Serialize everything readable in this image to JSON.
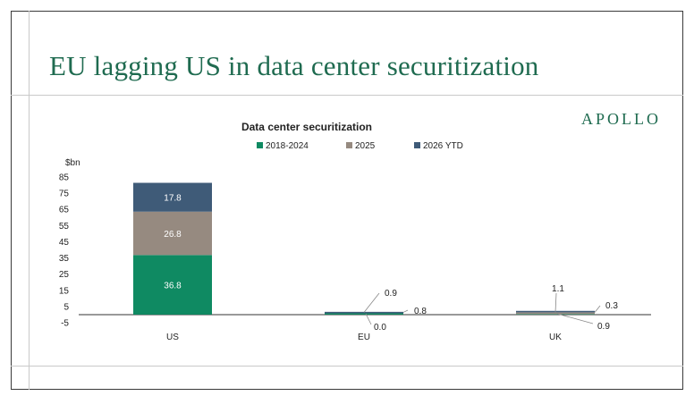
{
  "slide": {
    "title": "EU lagging US in data center securitization",
    "brand": "APOLLO"
  },
  "colors": {
    "title_green": "#1f6b50",
    "s2018": "#0f8a62",
    "s2025": "#968a80",
    "s2026": "#3f5b78"
  },
  "chart_data": {
    "type": "bar",
    "stacked": true,
    "title": "Data center securitization",
    "ylabel": "$bn",
    "ylim": [
      -5,
      85
    ],
    "yticks": [
      85,
      75,
      65,
      55,
      45,
      35,
      25,
      15,
      5,
      -5
    ],
    "categories": [
      "US",
      "EU",
      "UK"
    ],
    "legend_position": "top",
    "grid": false,
    "series": [
      {
        "name": "2018-2024",
        "color": "#0f8a62",
        "values": [
          36.8,
          0.8,
          0.3
        ]
      },
      {
        "name": "2025",
        "color": "#968a80",
        "values": [
          26.8,
          0.0,
          1.1
        ]
      },
      {
        "name": "2026 YTD",
        "color": "#3f5b78",
        "values": [
          17.8,
          0.9,
          0.9
        ]
      }
    ],
    "data_labels": [
      [
        "36.8",
        "0.8",
        "0.3"
      ],
      [
        "26.8",
        "0.0",
        "1.1"
      ],
      [
        "17.8",
        "0.9",
        "0.9"
      ]
    ]
  }
}
